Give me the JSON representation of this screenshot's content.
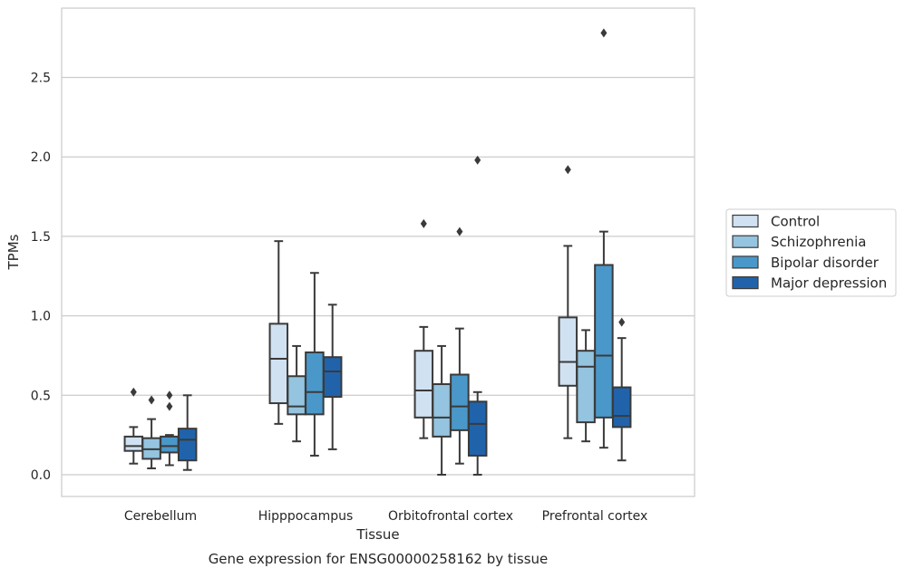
{
  "chart_data": {
    "type": "box",
    "xlabel": "Tissue",
    "ylabel": "TPMs",
    "caption": "Gene expression for ENSG00000258162 by tissue",
    "ylim": [
      -0.13,
      2.93
    ],
    "yticks": [
      "0.0",
      "0.5",
      "1.0",
      "1.5",
      "2.0",
      "2.5"
    ],
    "grid": "horizontal",
    "legend_position": "right",
    "categories": [
      "Cerebellum",
      "Hipppocampus",
      "Orbitofrontal cortex",
      "Prefrontal cortex"
    ],
    "series": [
      {
        "name": "Control",
        "color": "#d0e1f2",
        "boxes": [
          {
            "whisker_low": 0.07,
            "q1": 0.15,
            "median": 0.18,
            "q3": 0.24,
            "whisker_high": 0.3,
            "outliers": [
              0.52
            ]
          },
          {
            "whisker_low": 0.32,
            "q1": 0.45,
            "median": 0.73,
            "q3": 0.95,
            "whisker_high": 1.47,
            "outliers": []
          },
          {
            "whisker_low": 0.23,
            "q1": 0.36,
            "median": 0.53,
            "q3": 0.78,
            "whisker_high": 0.93,
            "outliers": [
              1.58
            ]
          },
          {
            "whisker_low": 0.23,
            "q1": 0.56,
            "median": 0.71,
            "q3": 0.99,
            "whisker_high": 1.44,
            "outliers": [
              1.92
            ]
          }
        ]
      },
      {
        "name": "Schizophrenia",
        "color": "#94c4df",
        "boxes": [
          {
            "whisker_low": 0.04,
            "q1": 0.1,
            "median": 0.16,
            "q3": 0.23,
            "whisker_high": 0.35,
            "outliers": [
              0.47
            ]
          },
          {
            "whisker_low": 0.21,
            "q1": 0.38,
            "median": 0.43,
            "q3": 0.62,
            "whisker_high": 0.81,
            "outliers": []
          },
          {
            "whisker_low": 0.0,
            "q1": 0.24,
            "median": 0.36,
            "q3": 0.57,
            "whisker_high": 0.81,
            "outliers": []
          },
          {
            "whisker_low": 0.21,
            "q1": 0.33,
            "median": 0.68,
            "q3": 0.78,
            "whisker_high": 0.91,
            "outliers": []
          }
        ]
      },
      {
        "name": "Bipolar disorder",
        "color": "#4a98c9",
        "boxes": [
          {
            "whisker_low": 0.06,
            "q1": 0.14,
            "median": 0.18,
            "q3": 0.24,
            "whisker_high": 0.25,
            "outliers": [
              0.43,
              0.5
            ]
          },
          {
            "whisker_low": 0.12,
            "q1": 0.38,
            "median": 0.52,
            "q3": 0.77,
            "whisker_high": 1.27,
            "outliers": []
          },
          {
            "whisker_low": 0.07,
            "q1": 0.28,
            "median": 0.43,
            "q3": 0.63,
            "whisker_high": 0.92,
            "outliers": [
              1.53
            ]
          },
          {
            "whisker_low": 0.17,
            "q1": 0.36,
            "median": 0.75,
            "q3": 1.32,
            "whisker_high": 1.53,
            "outliers": [
              2.78
            ]
          }
        ]
      },
      {
        "name": "Major depression",
        "color": "#2163aa",
        "boxes": [
          {
            "whisker_low": 0.03,
            "q1": 0.09,
            "median": 0.22,
            "q3": 0.29,
            "whisker_high": 0.5,
            "outliers": []
          },
          {
            "whisker_low": 0.16,
            "q1": 0.49,
            "median": 0.65,
            "q3": 0.74,
            "whisker_high": 1.07,
            "outliers": []
          },
          {
            "whisker_low": 0.0,
            "q1": 0.12,
            "median": 0.32,
            "q3": 0.46,
            "whisker_high": 0.52,
            "outliers": [
              1.98
            ]
          },
          {
            "whisker_low": 0.09,
            "q1": 0.3,
            "median": 0.37,
            "q3": 0.55,
            "whisker_high": 0.86,
            "outliers": [
              0.96
            ]
          }
        ]
      }
    ]
  }
}
